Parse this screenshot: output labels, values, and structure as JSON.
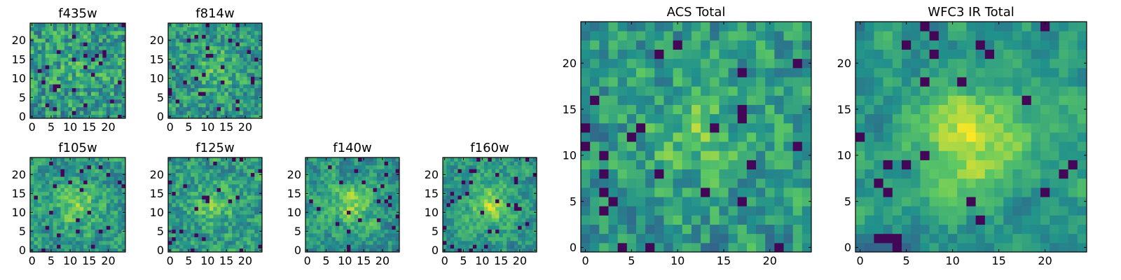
{
  "chart_data": [
    {
      "type": "heatmap",
      "title": "f435w",
      "grid_size": 25,
      "xlim": [
        0,
        24
      ],
      "ylim": [
        0,
        24
      ],
      "xticks": [
        "0",
        "5",
        "10",
        "15",
        "20"
      ],
      "yticks": [
        "0",
        "5",
        "10",
        "15",
        "20"
      ],
      "colormap": "viridis",
      "seed": 11,
      "blob": 0.15
    },
    {
      "type": "heatmap",
      "title": "f814w",
      "grid_size": 25,
      "xlim": [
        0,
        24
      ],
      "ylim": [
        0,
        24
      ],
      "xticks": [
        "0",
        "5",
        "10",
        "15",
        "20"
      ],
      "yticks": [
        "0",
        "5",
        "10",
        "15",
        "20"
      ],
      "colormap": "viridis",
      "seed": 23,
      "blob": 0.3
    },
    {
      "type": "heatmap",
      "title": "f105w",
      "grid_size": 25,
      "xlim": [
        0,
        24
      ],
      "ylim": [
        0,
        24
      ],
      "xticks": [
        "0",
        "5",
        "10",
        "15",
        "20"
      ],
      "yticks": [
        "0",
        "5",
        "10",
        "15",
        "20"
      ],
      "colormap": "viridis",
      "seed": 37,
      "blob": 0.45
    },
    {
      "type": "heatmap",
      "title": "f125w",
      "grid_size": 25,
      "xlim": [
        0,
        24
      ],
      "ylim": [
        0,
        24
      ],
      "xticks": [
        "0",
        "5",
        "10",
        "15",
        "20"
      ],
      "yticks": [
        "0",
        "5",
        "10",
        "15",
        "20"
      ],
      "colormap": "viridis",
      "seed": 41,
      "blob": 0.4
    },
    {
      "type": "heatmap",
      "title": "f140w",
      "grid_size": 25,
      "xlim": [
        0,
        24
      ],
      "ylim": [
        0,
        24
      ],
      "xticks": [
        "0",
        "5",
        "10",
        "15",
        "20"
      ],
      "yticks": [
        "0",
        "5",
        "10",
        "15",
        "20"
      ],
      "colormap": "viridis",
      "seed": 53,
      "blob": 0.5
    },
    {
      "type": "heatmap",
      "title": "f160w",
      "grid_size": 25,
      "xlim": [
        0,
        24
      ],
      "ylim": [
        0,
        24
      ],
      "xticks": [
        "0",
        "5",
        "10",
        "15",
        "20"
      ],
      "yticks": [
        "0",
        "5",
        "10",
        "15",
        "20"
      ],
      "colormap": "viridis",
      "seed": 67,
      "blob": 0.55
    },
    {
      "type": "heatmap",
      "title": "ACS Total",
      "grid_size": 25,
      "xlim": [
        0,
        24
      ],
      "ylim": [
        0,
        24
      ],
      "xticks": [
        "0",
        "5",
        "10",
        "15",
        "20"
      ],
      "yticks": [
        "0",
        "5",
        "10",
        "15",
        "20"
      ],
      "colormap": "viridis",
      "seed": 79,
      "blob": 0.35
    },
    {
      "type": "heatmap",
      "title": "WFC3 IR Total",
      "grid_size": 25,
      "xlim": [
        0,
        24
      ],
      "ylim": [
        0,
        24
      ],
      "xticks": [
        "0",
        "5",
        "10",
        "15",
        "20"
      ],
      "yticks": [
        "0",
        "5",
        "10",
        "15",
        "20"
      ],
      "colormap": "viridis",
      "seed": 97,
      "blob": 0.7
    }
  ],
  "colors": {
    "viridis_stops": [
      "#440154",
      "#3b528b",
      "#21918c",
      "#5ec962",
      "#fde725"
    ]
  }
}
